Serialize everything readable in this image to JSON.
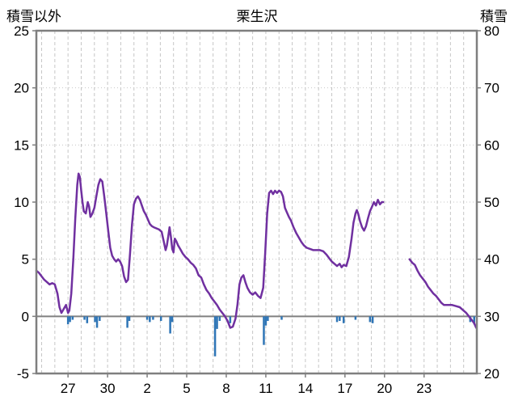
{
  "header": {
    "left_axis_title": "積雪以外",
    "title": "栗生沢",
    "right_axis_title": "積雪"
  },
  "chart_data": {
    "type": "line",
    "title": "栗生沢",
    "left_axis_label": "積雪以外",
    "right_axis_label": "積雪",
    "x_range": [
      24.6,
      58
    ],
    "x_note": "x is day-of-period serial: 27,30 = late January; 33=Feb2, 36=Feb5 ... 54=Feb23",
    "y_left": {
      "range": [
        -5,
        25
      ],
      "ticks": [
        25,
        20,
        15,
        10,
        5,
        0,
        -5
      ]
    },
    "y_right": {
      "range": [
        20,
        80
      ],
      "ticks": [
        80,
        70,
        60,
        50,
        40,
        30,
        20
      ]
    },
    "x_ticks": {
      "positions": [
        27,
        30,
        33,
        36,
        39,
        42,
        45,
        48,
        51,
        54
      ],
      "labels": [
        "27",
        "30",
        "2",
        "5",
        "8",
        "11",
        "14",
        "17",
        "20",
        "23"
      ]
    },
    "grid": {
      "vertical_every_day": true,
      "horizontal_step": 5
    },
    "legend": "none",
    "colors": {
      "line": "#7030A0",
      "bars": "#2E75B6",
      "grid": "#c6c6c6",
      "border": "#7f7f7f",
      "zero_line": "#808080",
      "text": "#000000"
    },
    "series": [
      {
        "name": "purple-line",
        "type": "line",
        "segments": [
          [
            [
              24.6,
              4.0
            ],
            [
              24.8,
              3.8
            ],
            [
              25.0,
              3.5
            ],
            [
              25.2,
              3.2
            ],
            [
              25.4,
              3.0
            ],
            [
              25.6,
              2.8
            ],
            [
              25.8,
              2.9
            ],
            [
              26.0,
              2.8
            ],
            [
              26.2,
              2.0
            ],
            [
              26.35,
              0.8
            ],
            [
              26.5,
              0.3
            ],
            [
              26.7,
              0.7
            ],
            [
              26.85,
              1.0
            ],
            [
              27.0,
              0.3
            ],
            [
              27.1,
              0.5
            ],
            [
              27.25,
              2.0
            ],
            [
              27.4,
              5.0
            ],
            [
              27.55,
              8.5
            ],
            [
              27.7,
              11.5
            ],
            [
              27.8,
              12.5
            ],
            [
              27.9,
              12.2
            ],
            [
              28.0,
              11.0
            ],
            [
              28.1,
              10.0
            ],
            [
              28.2,
              9.2
            ],
            [
              28.35,
              9.0
            ],
            [
              28.5,
              10.0
            ],
            [
              28.6,
              9.6
            ],
            [
              28.7,
              8.7
            ],
            [
              28.85,
              9.0
            ],
            [
              29.0,
              9.5
            ],
            [
              29.15,
              10.5
            ],
            [
              29.3,
              11.5
            ],
            [
              29.45,
              12.0
            ],
            [
              29.6,
              11.8
            ],
            [
              29.75,
              10.5
            ],
            [
              29.9,
              9.0
            ],
            [
              30.05,
              7.5
            ],
            [
              30.2,
              6.0
            ],
            [
              30.35,
              5.3
            ],
            [
              30.5,
              5.0
            ],
            [
              30.65,
              4.8
            ],
            [
              30.8,
              5.0
            ],
            [
              30.95,
              4.8
            ],
            [
              31.1,
              4.4
            ],
            [
              31.25,
              3.5
            ],
            [
              31.4,
              3.0
            ],
            [
              31.55,
              3.2
            ],
            [
              31.7,
              5.5
            ],
            [
              31.85,
              8.0
            ],
            [
              32.0,
              9.8
            ],
            [
              32.15,
              10.3
            ],
            [
              32.3,
              10.5
            ],
            [
              32.45,
              10.2
            ],
            [
              32.6,
              9.7
            ],
            [
              32.75,
              9.2
            ],
            [
              32.9,
              8.9
            ],
            [
              33.05,
              8.5
            ],
            [
              33.2,
              8.1
            ],
            [
              33.35,
              7.9
            ],
            [
              33.5,
              7.8
            ],
            [
              33.7,
              7.7
            ],
            [
              33.9,
              7.6
            ],
            [
              34.1,
              7.4
            ],
            [
              34.25,
              6.6
            ],
            [
              34.4,
              5.8
            ],
            [
              34.5,
              6.2
            ],
            [
              34.6,
              7.0
            ],
            [
              34.7,
              7.8
            ],
            [
              34.8,
              7.0
            ],
            [
              34.9,
              5.9
            ],
            [
              35.0,
              5.6
            ],
            [
              35.1,
              6.8
            ],
            [
              35.2,
              6.6
            ],
            [
              35.35,
              6.2
            ],
            [
              35.5,
              5.9
            ],
            [
              35.7,
              5.5
            ],
            [
              35.9,
              5.2
            ],
            [
              36.1,
              5.0
            ],
            [
              36.3,
              4.7
            ],
            [
              36.5,
              4.5
            ],
            [
              36.7,
              4.2
            ],
            [
              36.9,
              3.6
            ],
            [
              37.1,
              3.4
            ],
            [
              37.3,
              2.8
            ],
            [
              37.5,
              2.3
            ],
            [
              37.7,
              2.0
            ],
            [
              37.9,
              1.6
            ],
            [
              38.1,
              1.3
            ],
            [
              38.3,
              1.0
            ],
            [
              38.5,
              0.6
            ],
            [
              38.7,
              0.3
            ],
            [
              38.9,
              0.0
            ],
            [
              39.1,
              -0.4
            ],
            [
              39.3,
              -1.0
            ],
            [
              39.5,
              -0.9
            ],
            [
              39.7,
              -0.2
            ],
            [
              39.85,
              1.0
            ],
            [
              40.0,
              2.8
            ],
            [
              40.15,
              3.4
            ],
            [
              40.3,
              3.6
            ],
            [
              40.45,
              3.0
            ],
            [
              40.6,
              2.5
            ],
            [
              40.8,
              2.1
            ],
            [
              41.0,
              1.9
            ],
            [
              41.2,
              2.1
            ],
            [
              41.4,
              1.8
            ],
            [
              41.6,
              1.6
            ],
            [
              41.8,
              2.5
            ],
            [
              41.95,
              5.5
            ],
            [
              42.1,
              9.0
            ],
            [
              42.25,
              10.8
            ],
            [
              42.4,
              11.0
            ],
            [
              42.55,
              10.7
            ],
            [
              42.7,
              11.0
            ],
            [
              42.85,
              10.8
            ],
            [
              43.0,
              11.0
            ],
            [
              43.15,
              10.9
            ],
            [
              43.3,
              10.5
            ],
            [
              43.45,
              9.5
            ],
            [
              43.6,
              9.1
            ],
            [
              43.75,
              8.7
            ],
            [
              43.9,
              8.4
            ],
            [
              44.1,
              7.8
            ],
            [
              44.3,
              7.3
            ],
            [
              44.5,
              6.9
            ],
            [
              44.7,
              6.5
            ],
            [
              44.9,
              6.2
            ],
            [
              45.1,
              6.0
            ],
            [
              45.35,
              5.9
            ],
            [
              45.6,
              5.8
            ],
            [
              45.85,
              5.8
            ],
            [
              46.1,
              5.8
            ],
            [
              46.35,
              5.7
            ],
            [
              46.6,
              5.4
            ],
            [
              46.8,
              5.1
            ],
            [
              47.0,
              4.8
            ],
            [
              47.2,
              4.6
            ],
            [
              47.4,
              4.4
            ],
            [
              47.6,
              4.6
            ],
            [
              47.75,
              4.3
            ],
            [
              47.9,
              4.5
            ],
            [
              48.1,
              4.4
            ],
            [
              48.3,
              5.2
            ],
            [
              48.5,
              6.8
            ],
            [
              48.65,
              8.2
            ],
            [
              48.8,
              9.0
            ],
            [
              48.9,
              9.3
            ],
            [
              49.0,
              9.0
            ],
            [
              49.15,
              8.3
            ],
            [
              49.3,
              7.8
            ],
            [
              49.45,
              7.5
            ],
            [
              49.6,
              7.9
            ],
            [
              49.75,
              8.6
            ],
            [
              49.9,
              9.2
            ],
            [
              50.05,
              9.6
            ],
            [
              50.2,
              10.0
            ],
            [
              50.35,
              9.7
            ],
            [
              50.5,
              10.2
            ],
            [
              50.65,
              9.8
            ],
            [
              50.8,
              10.0
            ],
            [
              50.9,
              10.0
            ]
          ],
          [
            [
              52.9,
              5.0
            ],
            [
              53.1,
              4.7
            ],
            [
              53.3,
              4.5
            ],
            [
              53.5,
              4.0
            ],
            [
              53.7,
              3.6
            ],
            [
              53.9,
              3.3
            ],
            [
              54.1,
              3.0
            ],
            [
              54.3,
              2.6
            ],
            [
              54.5,
              2.3
            ],
            [
              54.7,
              2.0
            ],
            [
              54.9,
              1.8
            ],
            [
              55.1,
              1.5
            ],
            [
              55.3,
              1.2
            ],
            [
              55.5,
              1.0
            ],
            [
              55.8,
              1.0
            ],
            [
              56.1,
              1.0
            ],
            [
              56.4,
              0.9
            ],
            [
              56.7,
              0.8
            ],
            [
              57.0,
              0.5
            ],
            [
              57.2,
              0.3
            ],
            [
              57.4,
              0.0
            ],
            [
              57.6,
              -0.3
            ],
            [
              57.8,
              -0.6
            ],
            [
              57.95,
              -1.0
            ]
          ]
        ]
      },
      {
        "name": "blue-bars",
        "type": "bar",
        "points": [
          [
            27.0,
            -0.7
          ],
          [
            27.15,
            -0.5
          ],
          [
            27.35,
            -0.3
          ],
          [
            28.25,
            -0.3
          ],
          [
            28.45,
            -0.6
          ],
          [
            29.05,
            -0.5
          ],
          [
            29.2,
            -1.0
          ],
          [
            29.4,
            -0.4
          ],
          [
            31.5,
            -1.0
          ],
          [
            31.65,
            -0.4
          ],
          [
            33.0,
            -0.3
          ],
          [
            33.2,
            -0.5
          ],
          [
            33.45,
            -0.3
          ],
          [
            34.05,
            -0.4
          ],
          [
            34.75,
            -1.5
          ],
          [
            34.9,
            -0.5
          ],
          [
            38.15,
            -3.5
          ],
          [
            38.3,
            -1.1
          ],
          [
            38.5,
            -0.4
          ],
          [
            39.3,
            -0.6
          ],
          [
            41.85,
            -2.5
          ],
          [
            42.0,
            -0.8
          ],
          [
            42.15,
            -0.4
          ],
          [
            43.2,
            -0.3
          ],
          [
            47.4,
            -0.5
          ],
          [
            47.6,
            -0.4
          ],
          [
            47.9,
            -0.6
          ],
          [
            48.8,
            -0.3
          ],
          [
            49.9,
            -0.5
          ],
          [
            50.1,
            -0.6
          ],
          [
            57.5,
            -0.5
          ],
          [
            57.8,
            -0.7
          ]
        ]
      }
    ]
  }
}
